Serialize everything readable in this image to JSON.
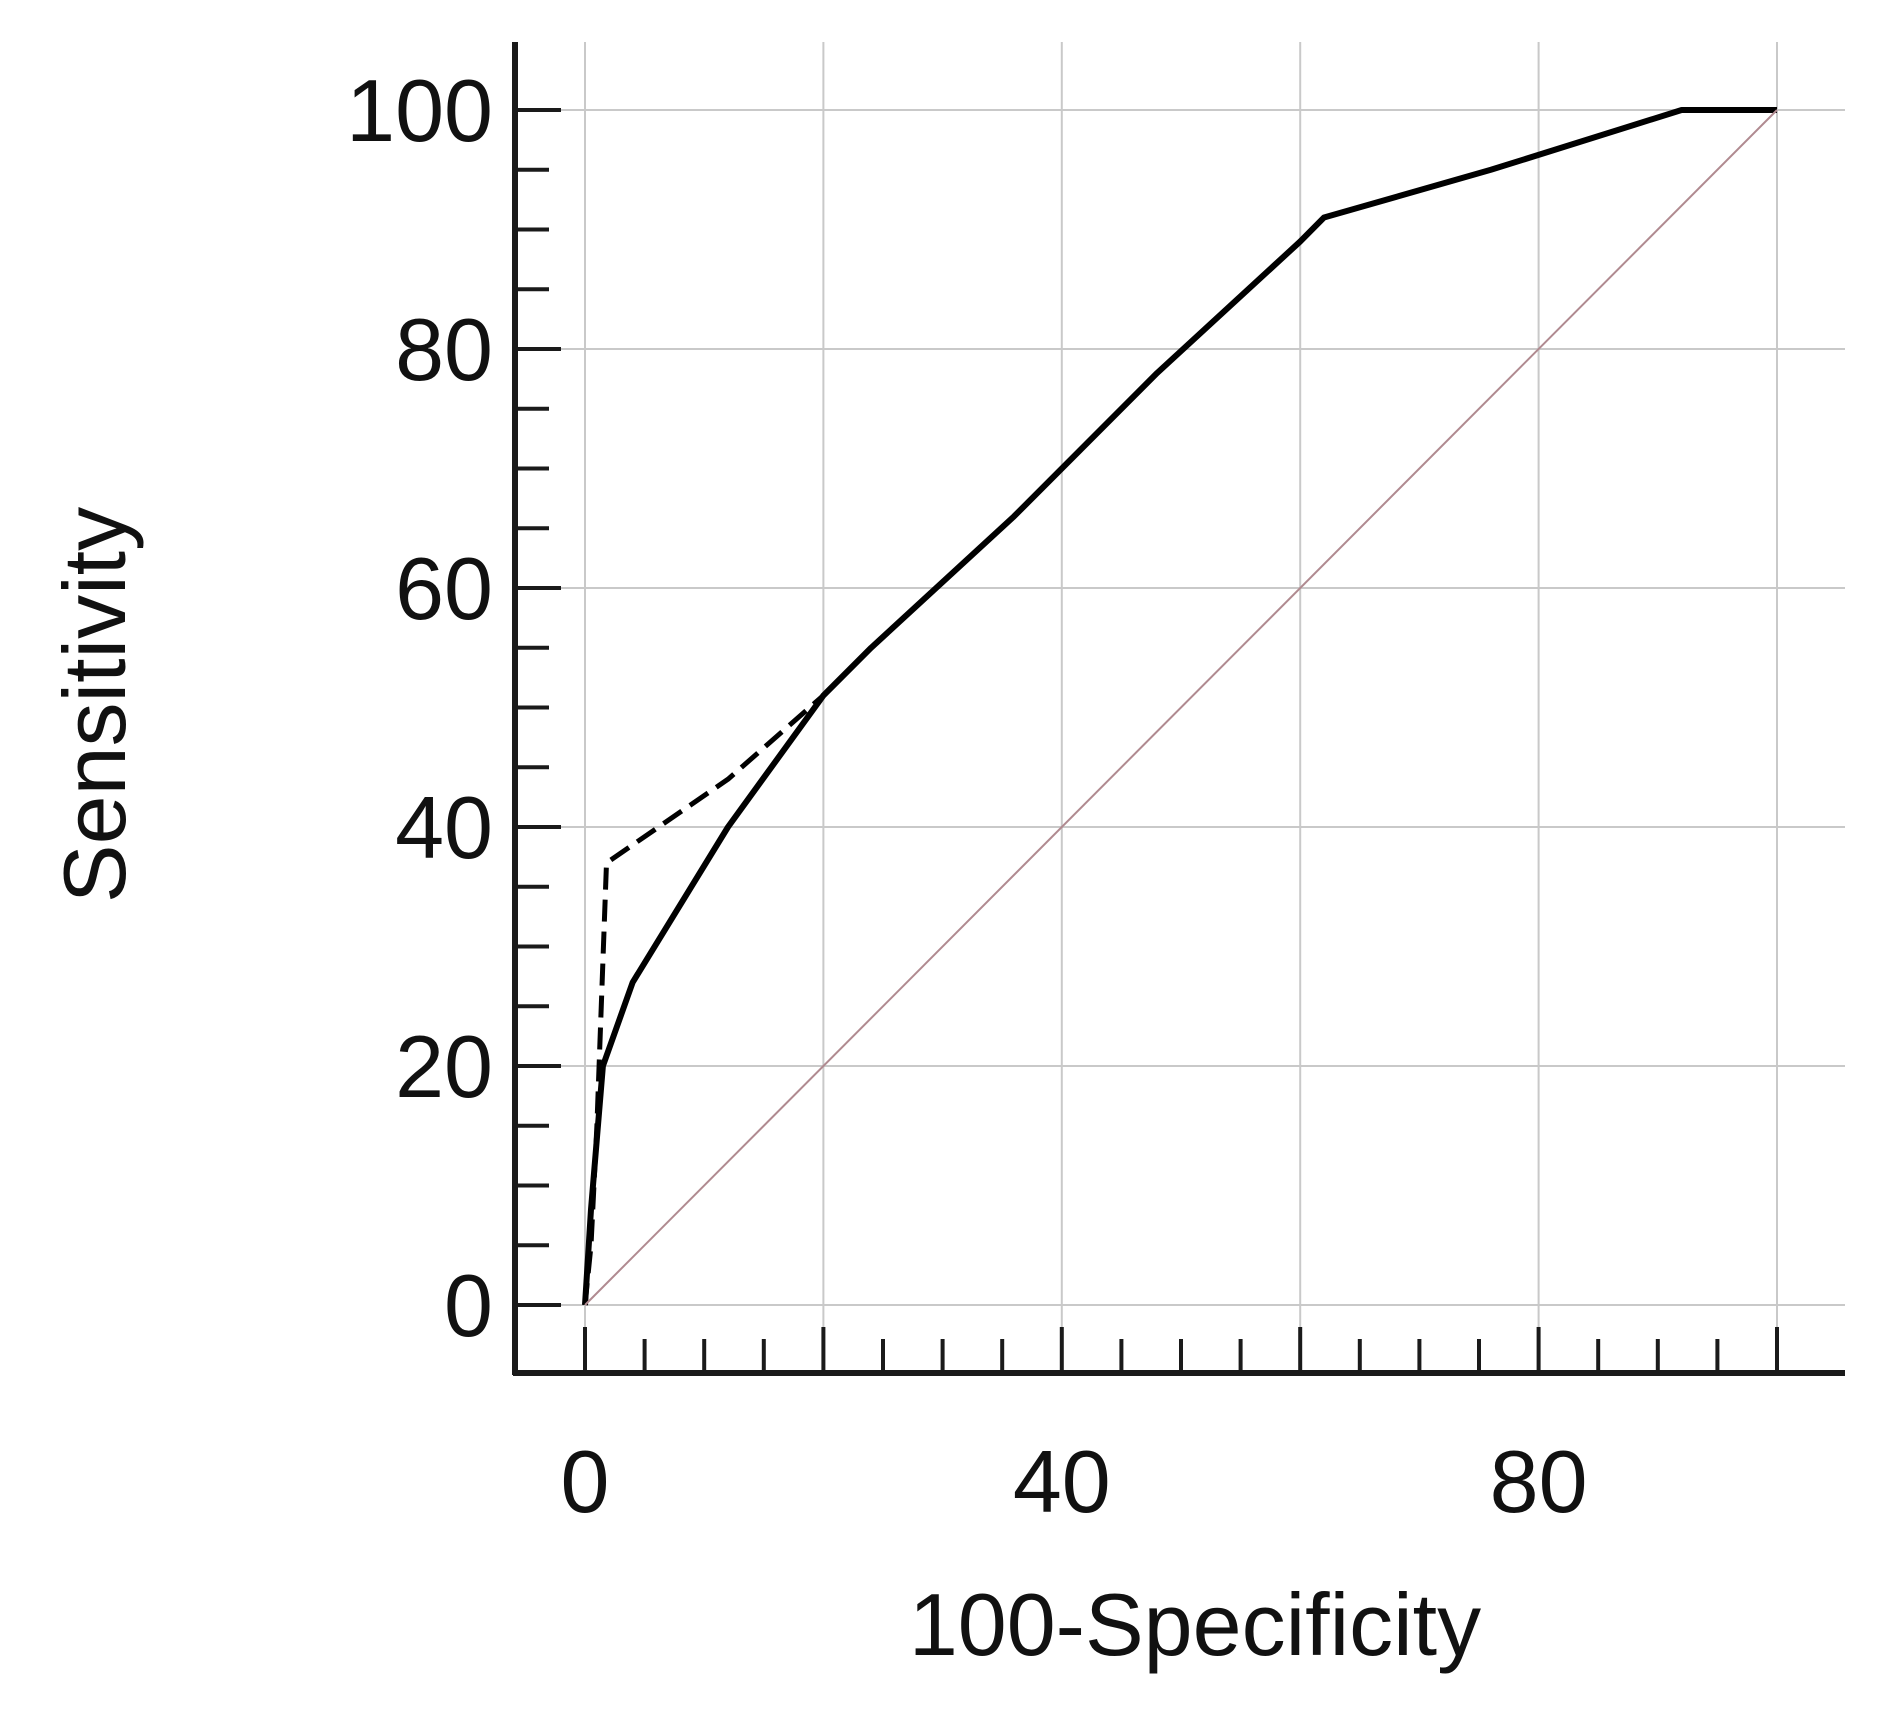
{
  "chart_data": {
    "type": "line",
    "title": "",
    "xlabel": "100-Specificity",
    "ylabel": "Sensitivity",
    "xlim": [
      0,
      100
    ],
    "ylim": [
      0,
      100
    ],
    "x_tick_labels": [
      "0",
      "40",
      "80"
    ],
    "y_tick_labels": [
      "0",
      "20",
      "40",
      "60",
      "80",
      "100"
    ],
    "grid": true,
    "series": [
      {
        "style": "solid",
        "color": "#000000",
        "x": [
          0,
          0.5,
          1.5,
          4,
          12,
          20,
          24,
          36,
          48,
          60,
          62,
          76,
          92,
          100
        ],
        "y": [
          0,
          8,
          20,
          27,
          40,
          51,
          55,
          66,
          78,
          89,
          91,
          95,
          100,
          100
        ]
      },
      {
        "style": "dashed",
        "color": "#000000",
        "x": [
          0,
          0.5,
          1,
          1.8,
          12,
          20,
          24,
          36,
          48,
          60,
          62,
          76,
          92,
          100
        ],
        "y": [
          0,
          5,
          15,
          37,
          44,
          51,
          55,
          66,
          78,
          89,
          91,
          95,
          100,
          100
        ]
      },
      {
        "style": "reference",
        "color": "#b08a90",
        "x": [
          0,
          100
        ],
        "y": [
          0,
          100
        ]
      }
    ]
  }
}
